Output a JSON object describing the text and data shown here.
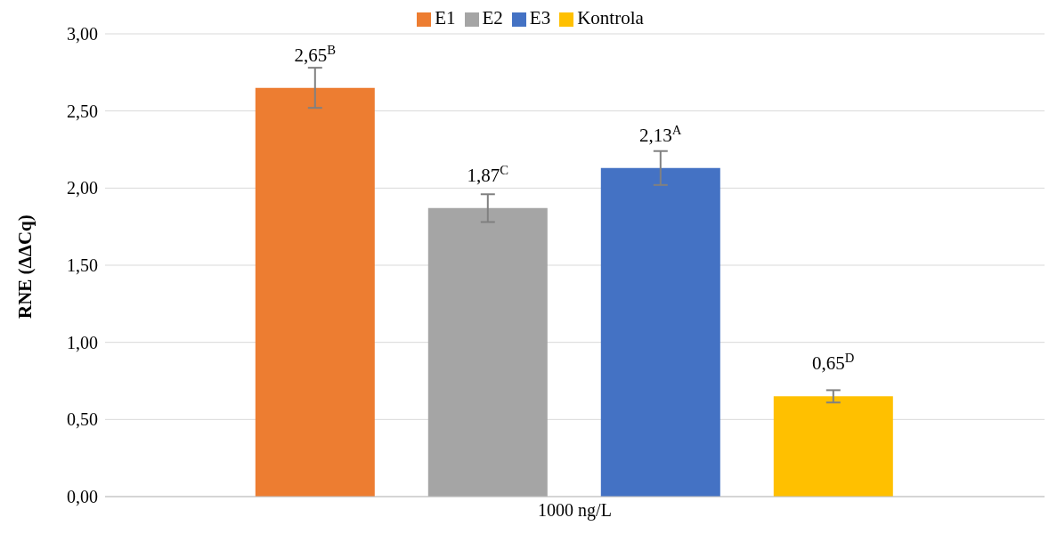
{
  "chart_data": {
    "type": "bar",
    "categories": [
      "1000 ng/L"
    ],
    "ylabel": "RNE (ΔΔCq)",
    "ylim": [
      0,
      3
    ],
    "yticks": [
      {
        "value": 0,
        "label": "0,00"
      },
      {
        "value": 0.5,
        "label": "0,50"
      },
      {
        "value": 1,
        "label": "1,00"
      },
      {
        "value": 1.5,
        "label": "1,50"
      },
      {
        "value": 2,
        "label": "2,00"
      },
      {
        "value": 2.5,
        "label": "2,50"
      },
      {
        "value": 3,
        "label": "3,00"
      }
    ],
    "grid": "y",
    "legend": "top",
    "series": [
      {
        "name": "E1",
        "color": "#ed7d31",
        "values": [
          2.65
        ],
        "errors": [
          0.13
        ],
        "value_labels": [
          "2,65$^{B}$"
        ]
      },
      {
        "name": "E2",
        "color": "#a5a5a5",
        "values": [
          1.87
        ],
        "errors": [
          0.09
        ],
        "value_labels": [
          "1,87$^{C}$"
        ]
      },
      {
        "name": "E3",
        "color": "#4472c4",
        "values": [
          2.13
        ],
        "errors": [
          0.11
        ],
        "value_labels": [
          "2,13$^{A}$"
        ]
      },
      {
        "name": "Kontrola",
        "color": "#ffc000",
        "values": [
          0.65
        ],
        "errors": [
          0.04
        ],
        "value_labels": [
          "0,65$^{D}$"
        ]
      }
    ]
  }
}
